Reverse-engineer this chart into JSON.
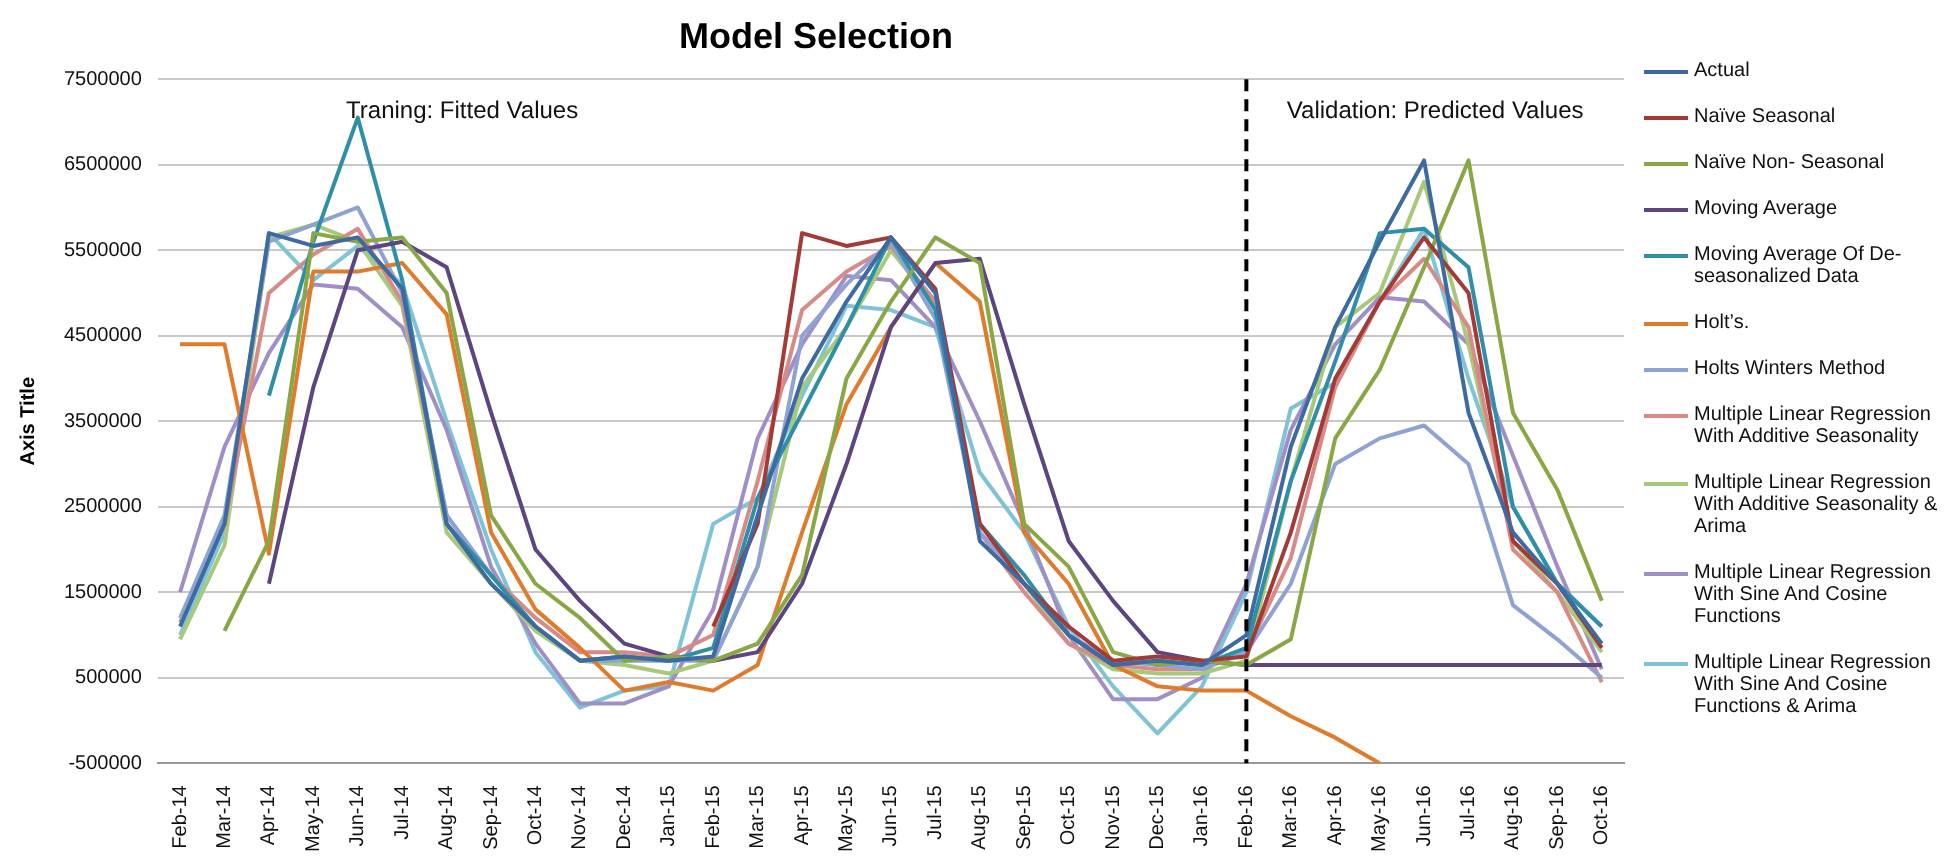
{
  "chart_data": {
    "type": "line",
    "title": "Model Selection",
    "ylabel": "Axis Title",
    "categories": [
      "Feb-14",
      "Mar-14",
      "Apr-14",
      "May-14",
      "Jun-14",
      "Jul-14",
      "Aug-14",
      "Sep-14",
      "Oct-14",
      "Nov-14",
      "Dec-14",
      "Jan-15",
      "Feb-15",
      "Mar-15",
      "Apr-15",
      "May-15",
      "Jun-15",
      "Jul-15",
      "Aug-15",
      "Sep-15",
      "Oct-15",
      "Nov-15",
      "Dec-15",
      "Jan-16",
      "Feb-16",
      "Mar-16",
      "Apr-16",
      "May-16",
      "Jun-16",
      "Jul-16",
      "Aug-16",
      "Sep-16",
      "Oct-16"
    ],
    "ylim": [
      -500000,
      7500000
    ],
    "yticks": [
      -500000,
      500000,
      1500000,
      2500000,
      3500000,
      4500000,
      5500000,
      6500000,
      7500000
    ],
    "grid": "y",
    "legend": "right",
    "marker": "none",
    "line_style": "solid",
    "ref_lines": [
      {
        "axis": "x",
        "value": "Feb-16",
        "color": "#000000",
        "line_style": "dashed"
      }
    ],
    "annotations": [
      "Traning: Fitted Values",
      "Validation: Predicted Values"
    ],
    "series": [
      {
        "name": "Actual",
        "color": "#3d6aa0",
        "values": [
          1100000,
          2300000,
          5700000,
          5550000,
          5650000,
          5050000,
          2300000,
          1600000,
          1100000,
          700000,
          750000,
          700000,
          750000,
          2400000,
          4000000,
          4900000,
          5650000,
          5000000,
          2100000,
          1600000,
          1000000,
          650000,
          700000,
          650000,
          1000000,
          3200000,
          4600000,
          5600000,
          6550000,
          3600000,
          2200000,
          1600000,
          900000
        ]
      },
      {
        "name": "Naïve Seasonal",
        "color": "#a33a36",
        "values": [
          null,
          null,
          null,
          null,
          null,
          null,
          null,
          null,
          null,
          null,
          null,
          null,
          1100000,
          2300000,
          5700000,
          5550000,
          5650000,
          5050000,
          2300000,
          1600000,
          1100000,
          700000,
          750000,
          700000,
          750000,
          2200000,
          4000000,
          4900000,
          5650000,
          5000000,
          2100000,
          1600000,
          850000
        ]
      },
      {
        "name": "Naïve Non- Seasonal",
        "color": "#8aa745",
        "values": [
          null,
          1050000,
          2100000,
          5700000,
          5600000,
          5650000,
          5000000,
          2400000,
          1600000,
          1200000,
          700000,
          750000,
          700000,
          900000,
          1700000,
          4000000,
          4900000,
          5650000,
          5350000,
          2300000,
          1800000,
          800000,
          650000,
          700000,
          650000,
          950000,
          3300000,
          4100000,
          5300000,
          6550000,
          3600000,
          2700000,
          1400000
        ]
      },
      {
        "name": "Moving Average",
        "color": "#5c4580",
        "values": [
          null,
          null,
          1600000,
          3900000,
          5500000,
          5600000,
          5300000,
          3600000,
          2000000,
          1400000,
          900000,
          750000,
          700000,
          800000,
          1600000,
          3000000,
          4600000,
          5350000,
          5400000,
          3700000,
          2100000,
          1400000,
          800000,
          700000,
          650000,
          650000,
          650000,
          650000,
          650000,
          650000,
          650000,
          650000,
          650000
        ]
      },
      {
        "name": "Moving Average  Of De-seasonalized Data",
        "color": "#2f8fa8",
        "values": [
          null,
          null,
          3800000,
          5600000,
          7050000,
          5150000,
          2300000,
          1700000,
          1100000,
          700000,
          750000,
          700000,
          850000,
          2600000,
          3600000,
          4600000,
          5650000,
          4800000,
          2300000,
          1700000,
          1000000,
          650000,
          700000,
          650000,
          850000,
          2800000,
          4200000,
          5700000,
          5750000,
          5300000,
          2500000,
          1600000,
          1100000
        ]
      },
      {
        "name": "Holt’s.",
        "color": "#e07b2c",
        "values": [
          4400000,
          4400000,
          1950000,
          5250000,
          5250000,
          5350000,
          4750000,
          2200000,
          1300000,
          850000,
          350000,
          450000,
          350000,
          650000,
          2200000,
          3700000,
          4600000,
          5350000,
          4900000,
          2200000,
          1600000,
          650000,
          400000,
          350000,
          350000,
          50000,
          -200000,
          -500000,
          null,
          null,
          null,
          null,
          null
        ]
      },
      {
        "name": "Holts Winters  Method",
        "color": "#8fa2d4",
        "values": [
          1200000,
          2400000,
          5600000,
          5800000,
          6000000,
          5000000,
          2400000,
          1700000,
          1100000,
          700000,
          700000,
          700000,
          700000,
          1800000,
          4500000,
          5100000,
          5600000,
          4700000,
          2200000,
          1600000,
          1000000,
          700000,
          650000,
          600000,
          800000,
          1600000,
          3000000,
          3300000,
          3450000,
          3000000,
          1350000,
          950000,
          500000
        ]
      },
      {
        "name": "Multiple Linear Regression With Additive Seasonality",
        "color": "#d88a87",
        "values": [
          1150000,
          2300000,
          5000000,
          5450000,
          5750000,
          4900000,
          2400000,
          1700000,
          1200000,
          800000,
          800000,
          750000,
          1000000,
          2800000,
          4800000,
          5250000,
          5550000,
          4900000,
          2200000,
          1500000,
          900000,
          650000,
          600000,
          600000,
          800000,
          1900000,
          3900000,
          4900000,
          5400000,
          4600000,
          2000000,
          1500000,
          450000
        ]
      },
      {
        "name": "Multiple Linear Regression With Additive Seasonality & Arima",
        "color": "#a9c97a",
        "values": [
          950000,
          2050000,
          5650000,
          5800000,
          5600000,
          4850000,
          2200000,
          1600000,
          1050000,
          700000,
          650000,
          550000,
          700000,
          1800000,
          3900000,
          4600000,
          5500000,
          4850000,
          2200000,
          1600000,
          900000,
          600000,
          550000,
          550000,
          700000,
          2800000,
          4600000,
          5000000,
          6300000,
          4400000,
          2100000,
          1500000,
          800000
        ]
      },
      {
        "name": "Multiple Linear Regression With Sine And Cosine Functions",
        "color": "#a08fc7",
        "values": [
          1500000,
          3200000,
          4300000,
          5100000,
          5050000,
          4600000,
          3400000,
          1800000,
          900000,
          200000,
          200000,
          400000,
          1300000,
          3300000,
          4400000,
          5200000,
          5150000,
          4600000,
          3500000,
          2300000,
          1000000,
          250000,
          250000,
          500000,
          1600000,
          3400000,
          4400000,
          4950000,
          4900000,
          4400000,
          3100000,
          1800000,
          600000
        ]
      },
      {
        "name": "Multiple Linear Regression With Sine And Cosine Functions & Arima",
        "color": "#7fc3d6",
        "values": [
          1000000,
          2200000,
          5700000,
          5150000,
          5550000,
          5100000,
          3500000,
          2000000,
          800000,
          150000,
          350000,
          400000,
          2300000,
          2600000,
          3800000,
          4850000,
          4800000,
          4600000,
          2900000,
          2200000,
          1100000,
          400000,
          -150000,
          400000,
          1500000,
          3650000,
          3950000,
          4900000,
          5750000,
          4000000,
          2500000,
          1600000,
          1100000
        ]
      }
    ]
  }
}
